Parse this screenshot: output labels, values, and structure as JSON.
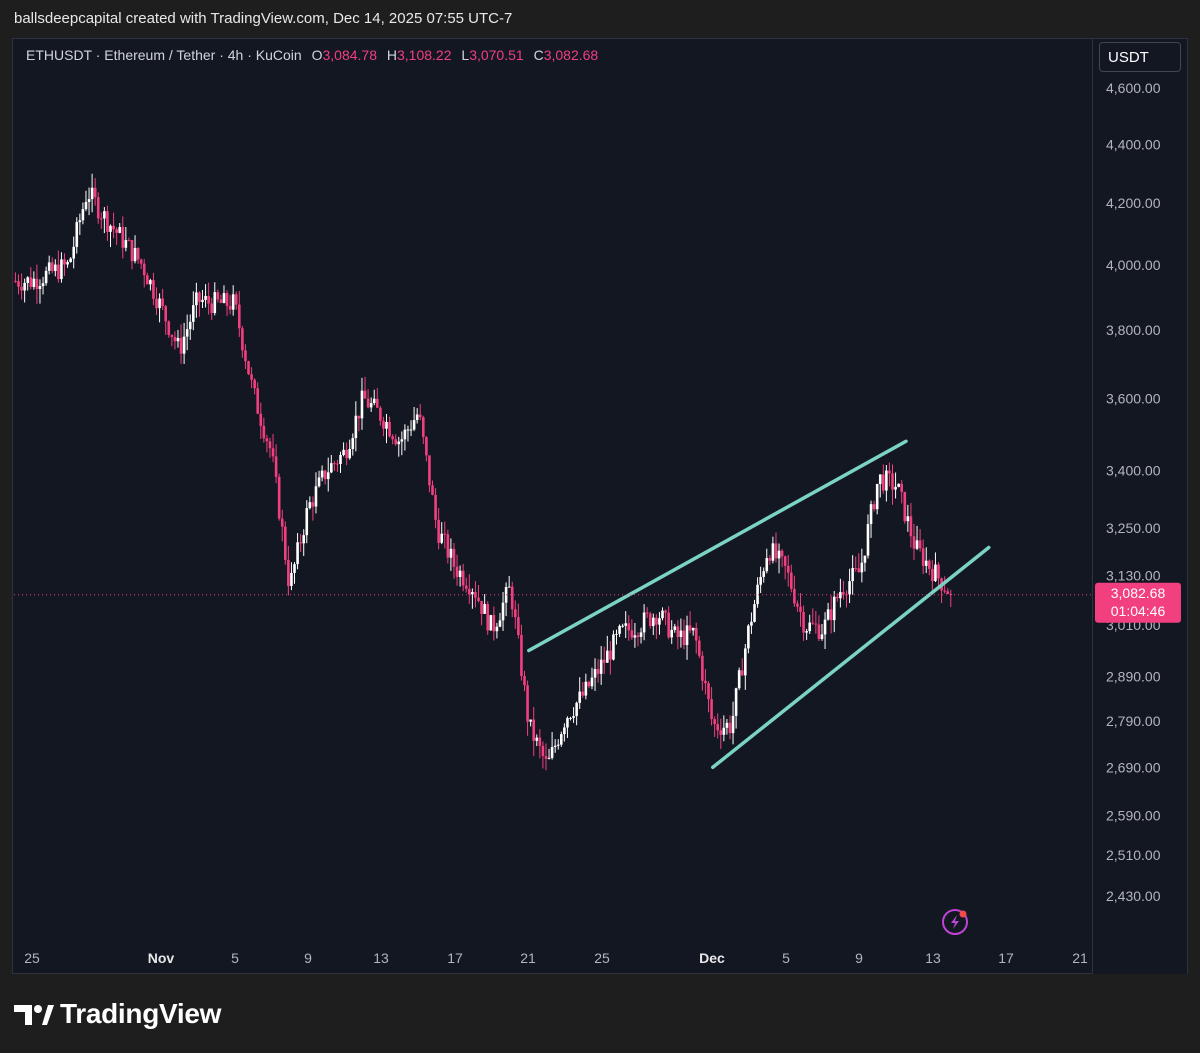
{
  "header": {
    "caption": "ballsdeepcapital created with TradingView.com, Dec 14, 2025 07:55 UTC-7"
  },
  "legend": {
    "symbol": "ETHUSDT · Ethereum / Tether · 4h · KuCoin",
    "open_label": "O",
    "open": "3,084.78",
    "high_label": "H",
    "high": "3,108.22",
    "low_label": "L",
    "low": "3,070.51",
    "close_label": "C",
    "close": "3,082.68"
  },
  "price_axis": {
    "currency": "USDT",
    "last_price": "3,082.68",
    "countdown": "01:04:46"
  },
  "footer": {
    "brand": "TradingView"
  },
  "colors": {
    "background": "#131722",
    "up": "#ffffff",
    "down": "#f23f7f",
    "trendline": "#7ad3c4",
    "accent": "#f23f7f"
  },
  "chart_data": {
    "type": "candlestick",
    "title": "ETHUSDT · Ethereum / Tether · 4h · KuCoin",
    "y_ticks": [
      4600,
      4400,
      4200,
      4000,
      3800,
      3600,
      3400,
      3250,
      3130,
      3010,
      2890,
      2790,
      2690,
      2590,
      2510,
      2430
    ],
    "y_tick_labels": [
      "4,600.00",
      "4,400.00",
      "4,200.00",
      "4,000.00",
      "3,800.00",
      "3,600.00",
      "3,400.00",
      "3,250.00",
      "3,130.00",
      "3,010.00",
      "2,890.00",
      "2,790.00",
      "2,690.00",
      "2,590.00",
      "2,510.00",
      "2,430.00"
    ],
    "x_ticks": [
      "25",
      "Nov",
      "5",
      "9",
      "13",
      "17",
      "21",
      "25",
      "Dec",
      "5",
      "9",
      "13",
      "17",
      "21"
    ],
    "ylim": [
      2380,
      4700
    ],
    "log_scale": true,
    "last_price": 3082.68,
    "price_path": [
      [
        "Oct 25",
        3950
      ],
      [
        "Oct 27",
        4000
      ],
      [
        "Oct 28",
        4240
      ],
      [
        "Oct 29",
        4150
      ],
      [
        "Oct 31",
        4000
      ],
      [
        "Nov 1",
        3870
      ],
      [
        "Nov 2",
        3740
      ],
      [
        "Nov 3",
        3890
      ],
      [
        "Nov 4",
        3880
      ],
      [
        "Nov 5",
        3880
      ],
      [
        "Nov 6",
        3620
      ],
      [
        "Nov 7",
        3450
      ],
      [
        "Nov 8",
        3100
      ],
      [
        "Nov 9",
        3300
      ],
      [
        "Nov 10",
        3400
      ],
      [
        "Nov 11",
        3450
      ],
      [
        "Nov 12",
        3600
      ],
      [
        "Nov 13",
        3550
      ],
      [
        "Nov 14",
        3480
      ],
      [
        "Nov 15",
        3560
      ],
      [
        "Nov 16",
        3250
      ],
      [
        "Nov 17",
        3150
      ],
      [
        "Nov 18",
        3100
      ],
      [
        "Nov 19",
        3000
      ],
      [
        "Nov 20",
        3100
      ],
      [
        "Nov 21",
        2780
      ],
      [
        "Nov 22",
        2690
      ],
      [
        "Nov 23",
        2800
      ],
      [
        "Nov 24",
        2850
      ],
      [
        "Nov 25",
        2920
      ],
      [
        "Nov 26",
        2990
      ],
      [
        "Nov 27",
        3010
      ],
      [
        "Nov 28",
        3040
      ],
      [
        "Nov 29",
        2980
      ],
      [
        "Nov 30",
        2990
      ],
      [
        "Dec 1",
        2780
      ],
      [
        "Dec 2",
        2780
      ],
      [
        "Dec 3",
        3010
      ],
      [
        "Dec 4",
        3200
      ],
      [
        "Dec 5",
        3140
      ],
      [
        "Dec 6",
        3010
      ],
      [
        "Dec 7",
        3000
      ],
      [
        "Dec 8",
        3100
      ],
      [
        "Dec 9",
        3140
      ],
      [
        "Dec 10",
        3380
      ],
      [
        "Dec 11",
        3360
      ],
      [
        "Dec 12",
        3200
      ],
      [
        "Dec 13",
        3140
      ],
      [
        "Dec 14",
        3082.68
      ]
    ],
    "trendlines": [
      {
        "name": "upper-channel",
        "from": [
          "Nov 21",
          2950
        ],
        "to": [
          "Dec 11.5",
          3480
        ]
      },
      {
        "name": "lower-channel",
        "from": [
          "Dec 1",
          2690
        ],
        "to": [
          "Dec 16",
          3200
        ]
      }
    ]
  }
}
